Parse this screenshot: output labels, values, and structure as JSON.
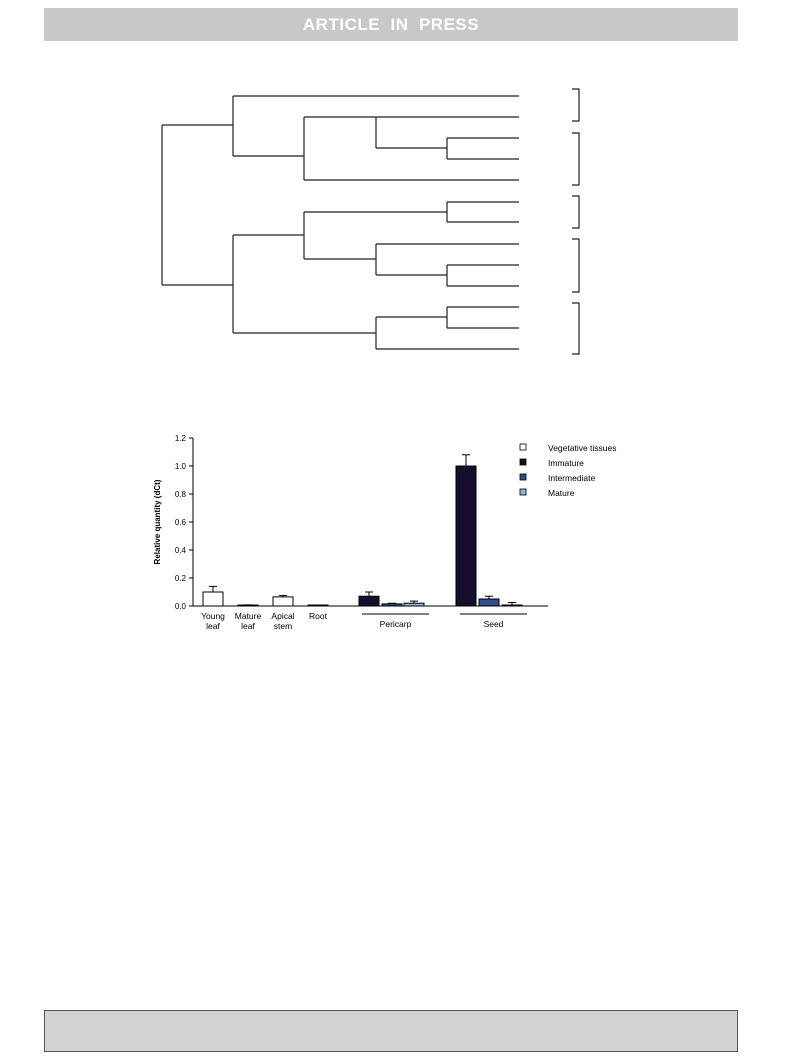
{
  "header": {
    "banner": "ARTICLE  IN  PRESS"
  },
  "chart_data": {
    "type": "bar",
    "ylabel": "Relative quantity (dCt)",
    "ylim": [
      0,
      1.2
    ],
    "yticks": [
      "0.0",
      "0.2",
      "0.4",
      "0.6",
      "0.8",
      "1.0",
      "1.2"
    ],
    "groups": [
      "Pericarp",
      "Seed"
    ],
    "series": [
      {
        "name": "Vegetative tissues",
        "color": "#ffffff"
      },
      {
        "name": "Immature",
        "color": "#160d2c"
      },
      {
        "name": "Intermediate",
        "color": "#2e4f8c"
      },
      {
        "name": "Mature",
        "color": "#8fb3d6"
      }
    ],
    "bars": [
      {
        "label": [
          "Young",
          "leaf"
        ],
        "series": 0,
        "value": 0.1,
        "error": 0.04
      },
      {
        "label": [
          "Mature",
          "leaf"
        ],
        "series": 0,
        "value": 0.005,
        "error": 0.003
      },
      {
        "label": [
          "Apical",
          "stem"
        ],
        "series": 0,
        "value": 0.065,
        "error": 0.01
      },
      {
        "label": [
          "Root"
        ],
        "series": 0,
        "value": 0.002,
        "error": 0.001
      },
      {
        "label": [],
        "series": 1,
        "value": 0.07,
        "error": 0.03
      },
      {
        "label": [],
        "series": 2,
        "value": 0.015,
        "error": 0.005
      },
      {
        "label": [],
        "series": 3,
        "value": 0.02,
        "error": 0.015
      },
      {
        "label": [],
        "series": 1,
        "value": 1.0,
        "error": 0.08
      },
      {
        "label": [],
        "series": 2,
        "value": 0.05,
        "error": 0.02
      },
      {
        "label": [],
        "series": 3,
        "value": 0.005,
        "error": 0.02
      }
    ]
  }
}
